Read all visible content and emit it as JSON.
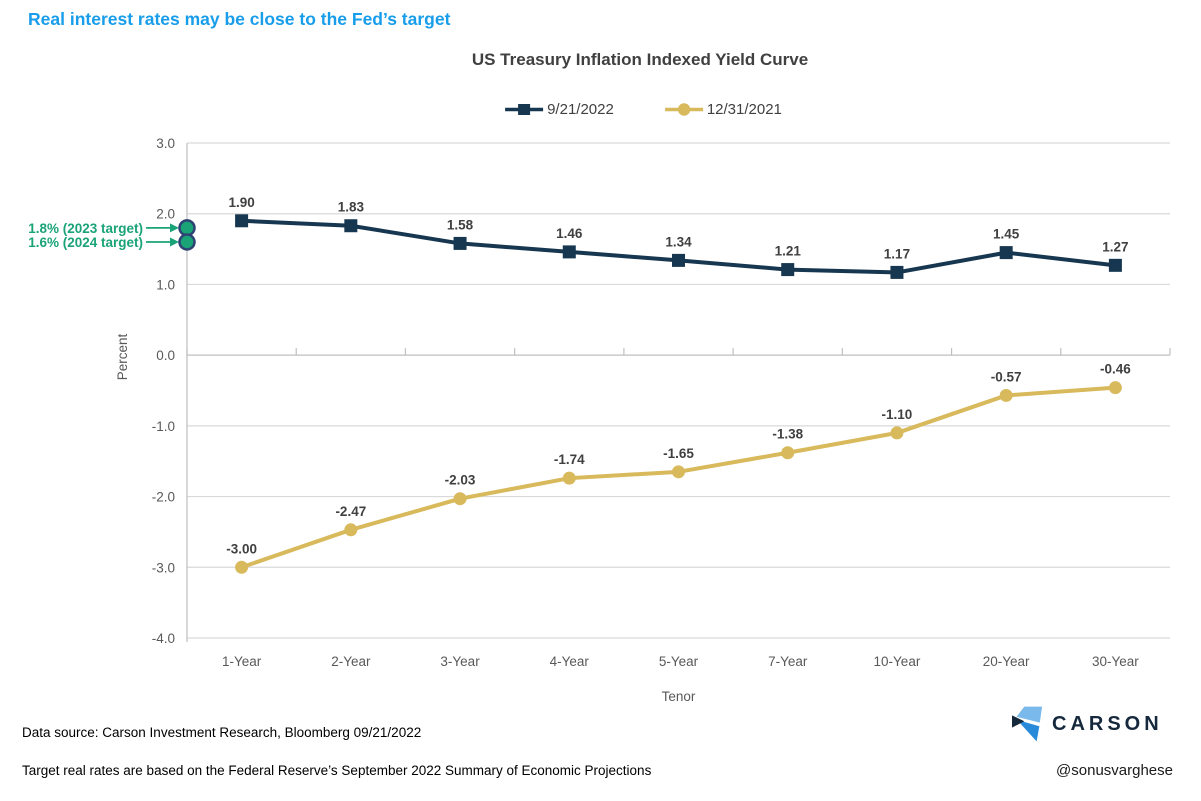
{
  "header": {
    "title": "Real interest rates may be close to the Fed’s target"
  },
  "chart_data": {
    "type": "line",
    "title": "US Treasury Inflation Indexed Yield Curve",
    "categories": [
      "1-Year",
      "2-Year",
      "3-Year",
      "4-Year",
      "5-Year",
      "7-Year",
      "10-Year",
      "20-Year",
      "30-Year"
    ],
    "series": [
      {
        "name": "9/21/2022",
        "marker": "square",
        "color": "#173750",
        "values": [
          1.9,
          1.83,
          1.58,
          1.46,
          1.34,
          1.21,
          1.17,
          1.45,
          1.27
        ],
        "labels": [
          "1.90",
          "1.83",
          "1.58",
          "1.46",
          "1.34",
          "1.21",
          "1.17",
          "1.45",
          "1.27"
        ]
      },
      {
        "name": "12/31/2021",
        "marker": "circle",
        "color": "#d8b95c",
        "values": [
          -3.0,
          -2.47,
          -2.03,
          -1.74,
          -1.65,
          -1.38,
          -1.1,
          -0.57,
          -0.46
        ],
        "labels": [
          "-3.00",
          "-2.47",
          "-2.03",
          "-1.74",
          "-1.65",
          "-1.38",
          "-1.10",
          "-0.57",
          "-0.46"
        ]
      }
    ],
    "xlabel": "Tenor",
    "ylabel": "Percent",
    "ylim": [
      -4.0,
      3.0
    ],
    "ytick_step": 1.0,
    "ytick_labels": [
      "3.0",
      "2.0",
      "1.0",
      "0.0",
      "-1.0",
      "-2.0",
      "-3.0",
      "-4.0"
    ],
    "grid": true,
    "legend_position": "top"
  },
  "annotations": [
    {
      "label": "1.8% (2023 target)",
      "value": 1.8
    },
    {
      "label": "1.6% (2024 target)",
      "value": 1.6
    }
  ],
  "colors": {
    "headline_blue": "#189deb",
    "series1_navy": "#173750",
    "series2_gold": "#d8b95c",
    "annotation_green": "#1aa377",
    "annotation_ring": "#2e4373",
    "gridline": "#d9d9d9",
    "axis_line": "#bfbfbf",
    "tick_label": "#595959",
    "data_label": "#404040",
    "logo_light": "#79b9ec",
    "logo_blue": "#2a8ada",
    "logo_navy": "#16283c"
  },
  "footer": {
    "source": "Data source: Carson Investment Research, Bloomberg   09/21/2022",
    "note": "Target real rates are based on the Federal Reserve’s September 2022 Summary of Economic Projections",
    "brand": "CARSON",
    "handle": "@sonusvarghese"
  }
}
